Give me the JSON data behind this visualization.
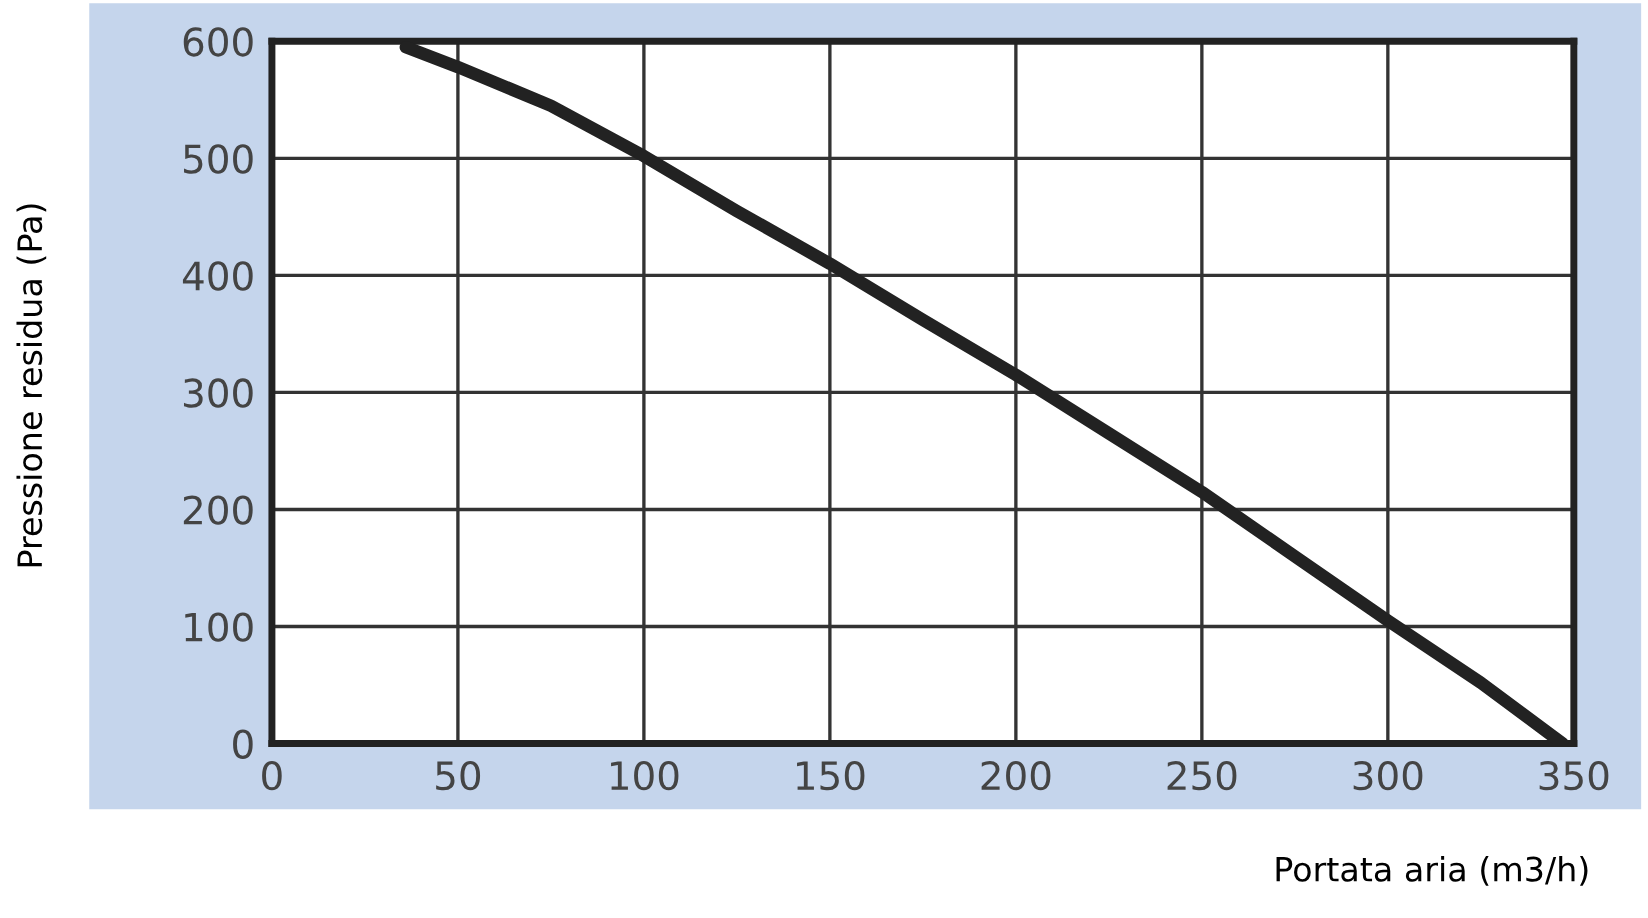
{
  "chart_data": {
    "type": "line",
    "xlabel": "Portata aria (m3/h)",
    "ylabel": "Pressione residua (Pa)",
    "x": [
      36,
      50,
      75,
      100,
      125,
      150,
      175,
      200,
      225,
      250,
      275,
      300,
      325,
      347
    ],
    "series": [
      {
        "color": "#222222",
        "values": [
          595,
          578,
          545,
          502,
          455,
          410,
          362,
          315,
          265,
          215,
          160,
          105,
          52,
          0
        ]
      }
    ],
    "xlim": [
      0,
      350
    ],
    "xticks": [
      0,
      50,
      100,
      150,
      200,
      250,
      300,
      350
    ],
    "ylim": [
      0,
      600
    ],
    "yticks": [
      0,
      100,
      200,
      300,
      400,
      500,
      600
    ],
    "grid": true
  }
}
